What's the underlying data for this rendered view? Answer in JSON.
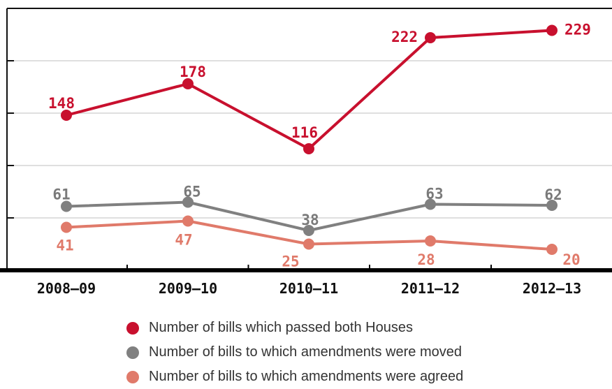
{
  "chart_data": {
    "type": "line",
    "categories": [
      "2008–09",
      "2009–10",
      "2010–11",
      "2011–12",
      "2012–13"
    ],
    "ylim": [
      0,
      250
    ],
    "grid": true,
    "legend_position": "bottom",
    "series": [
      {
        "name": "Number of bills which passed both Houses",
        "values": [
          148,
          178,
          116,
          222,
          229
        ],
        "color": "#c8102e",
        "label_color": "#c8102e"
      },
      {
        "name": "Number of bills to which amendments were moved",
        "values": [
          61,
          65,
          38,
          63,
          62
        ],
        "color": "#808080",
        "label_color": "#7a7a7a"
      },
      {
        "name": "Number of bills to which amendments were agreed",
        "values": [
          41,
          47,
          25,
          28,
          20
        ],
        "color": "#e07a6a",
        "label_color": "#e07a6a"
      }
    ]
  }
}
